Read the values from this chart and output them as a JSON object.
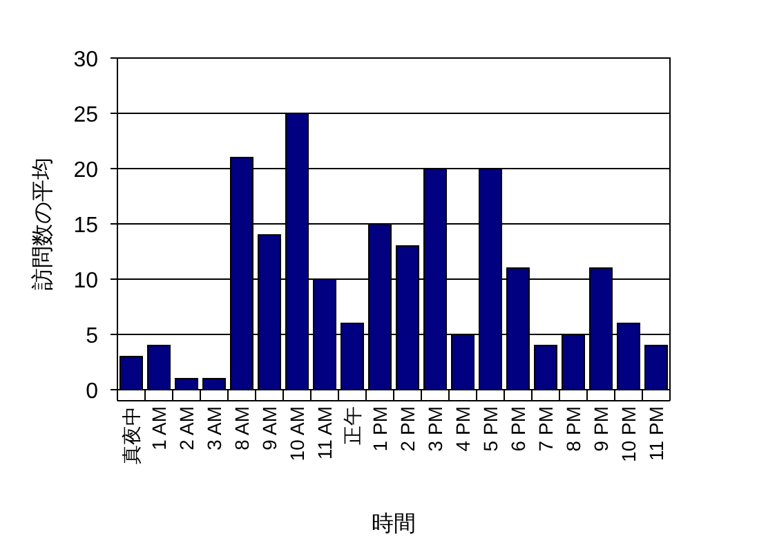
{
  "chart_data": {
    "type": "bar",
    "xlabel": "時間",
    "ylabel": "訪問数の平均",
    "categories": [
      "真夜中",
      "1 AM",
      "2 AM",
      "3 AM",
      "8 AM",
      "9 AM",
      "10 AM",
      "11 AM",
      "正午",
      "1 PM",
      "2 PM",
      "3 PM",
      "4 PM",
      "5 PM",
      "6 PM",
      "7 PM",
      "8 PM",
      "9 PM",
      "10 PM",
      "11 PM"
    ],
    "values": [
      3,
      4,
      1,
      1,
      21,
      14,
      25,
      10,
      6,
      15,
      13,
      20,
      5,
      20,
      11,
      4,
      5,
      11,
      6,
      4
    ],
    "color": "#000080",
    "ylim": [
      0,
      30
    ],
    "yticks": [
      0,
      5,
      10,
      15,
      20,
      25,
      30
    ],
    "grid": "y"
  }
}
